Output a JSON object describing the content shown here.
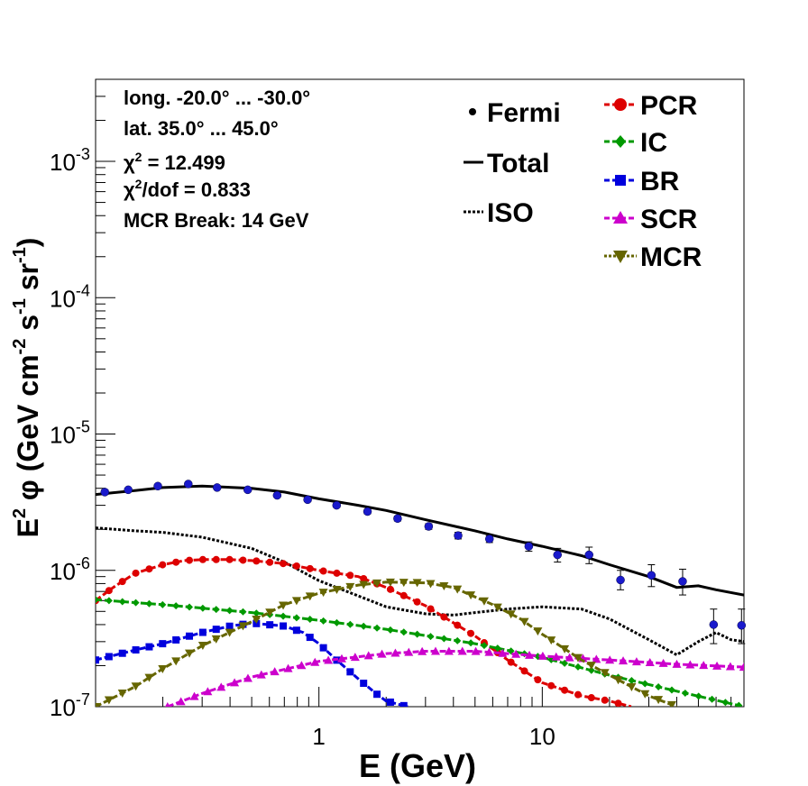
{
  "chart_data": {
    "type": "line",
    "xlabel": "E (GeV)",
    "ylabel": {
      "base": "E",
      "exp2": "2",
      "phi": " φ (GeV cm",
      "m2": "-2",
      "s": " s",
      "m1a": "-1",
      "sr": " sr",
      "m1b": "-1",
      "close": ")"
    },
    "xscale": "log",
    "yscale": "log",
    "xlim": [
      0.1,
      80
    ],
    "ylim": [
      1e-07,
      0.004
    ],
    "x_ticks": [
      {
        "v": 1,
        "label": "1"
      },
      {
        "v": 10,
        "label": "10"
      }
    ],
    "y_ticks": [
      {
        "v": 1e-07,
        "base": "10",
        "exp": "-7"
      },
      {
        "v": 1e-06,
        "base": "10",
        "exp": "-6"
      },
      {
        "v": 1e-05,
        "base": "10",
        "exp": "-5"
      },
      {
        "v": 0.0001,
        "base": "10",
        "exp": "-4"
      },
      {
        "v": 0.001,
        "base": "10",
        "exp": "-3"
      }
    ],
    "info": {
      "line1": "long. -20.0° ... -30.0°",
      "line2": "lat. 35.0° ... 45.0°",
      "chi2_sym": "χ",
      "chi2_exp": "2",
      "chi2_val": " = 12.499",
      "chidof_exp": "2",
      "chidof_val": "/dof = 0.833",
      "break": "MCR Break: 14 GeV"
    },
    "legend": {
      "fermi": "Fermi",
      "total": "Total",
      "iso": "ISO",
      "pcr": "PCR",
      "ic": "IC",
      "br": "BR",
      "scr": "SCR",
      "mcr": "MCR"
    },
    "colors": {
      "fermi": "#1a1acc",
      "total": "#000000",
      "iso": "#000000",
      "pcr": "#dd0000",
      "ic": "#009900",
      "br": "#0000dd",
      "scr": "#cc00cc",
      "mcr": "#666600"
    },
    "fermi": {
      "x": [
        0.11,
        0.14,
        0.19,
        0.26,
        0.35,
        0.48,
        0.65,
        0.89,
        1.2,
        1.65,
        2.25,
        3.1,
        4.2,
        5.8,
        8.7,
        11.7,
        16.2,
        22.4,
        30.8,
        42.5,
        58.5,
        78
      ],
      "y": [
        3.75e-06,
        3.9e-06,
        4.15e-06,
        4.3e-06,
        4.05e-06,
        3.9e-06,
        3.55e-06,
        3.3e-06,
        3e-06,
        2.7e-06,
        2.4e-06,
        2.1e-06,
        1.8e-06,
        1.7e-06,
        1.5e-06,
        1.3e-06,
        1.3e-06,
        8.5e-07,
        9.2e-07,
        8.3e-07,
        4e-07,
        3.95e-07
      ],
      "err_lo": [
        3.6e-06,
        3.8e-06,
        4.05e-06,
        4.2e-06,
        3.95e-06,
        3.8e-06,
        3.45e-06,
        3.2e-06,
        2.9e-06,
        2.6e-06,
        2.3e-06,
        2e-06,
        1.7e-06,
        1.6e-06,
        1.38e-06,
        1.15e-06,
        1.12e-06,
        7.2e-07,
        7.6e-07,
        6.6e-07,
        2.9e-07,
        2.9e-07
      ],
      "err_hi": [
        3.9e-06,
        4e-06,
        4.25e-06,
        4.4e-06,
        4.15e-06,
        4e-06,
        3.65e-06,
        3.4e-06,
        3.1e-06,
        2.8e-06,
        2.5e-06,
        2.2e-06,
        1.9e-06,
        1.8e-06,
        1.62e-06,
        1.45e-06,
        1.48e-06,
        1e-06,
        1.1e-06,
        1.02e-06,
        5.2e-07,
        5.2e-07
      ]
    },
    "series": [
      {
        "key": "total",
        "style": "solid",
        "marker": "none",
        "x": [
          0.1,
          0.15,
          0.2,
          0.3,
          0.5,
          0.7,
          1.0,
          1.5,
          2.0,
          3.0,
          5.0,
          7.0,
          10,
          15,
          20,
          30,
          40,
          50,
          60,
          80
        ],
        "y": [
          3.6e-06,
          3.85e-06,
          4.05e-06,
          4.15e-06,
          4e-06,
          3.75e-06,
          3.35e-06,
          3e-06,
          2.75e-06,
          2.35e-06,
          1.95e-06,
          1.7e-06,
          1.5e-06,
          1.28e-06,
          1.1e-06,
          9e-07,
          7.5e-07,
          7.7e-07,
          7.2e-07,
          6.6e-07
        ]
      },
      {
        "key": "iso",
        "style": "dotted",
        "marker": "none",
        "x": [
          0.1,
          0.15,
          0.2,
          0.3,
          0.5,
          0.7,
          1.0,
          1.5,
          2.0,
          3.0,
          4.0,
          5.0,
          7.0,
          10,
          15,
          20,
          30,
          40,
          50,
          60,
          70,
          80
        ],
        "y": [
          2.05e-06,
          1.95e-06,
          1.9e-06,
          1.75e-06,
          1.45e-06,
          1.15e-06,
          8.4e-07,
          6.5e-07,
          5.4e-07,
          4.8e-07,
          4.7e-07,
          4.9e-07,
          5.2e-07,
          5.4e-07,
          5.2e-07,
          4.4e-07,
          3.1e-07,
          2.4e-07,
          3e-07,
          3.5e-07,
          3.1e-07,
          3e-07
        ]
      },
      {
        "key": "pcr",
        "style": "dashed",
        "marker": "circle",
        "x": [
          0.1,
          0.12,
          0.15,
          0.2,
          0.25,
          0.3,
          0.4,
          0.5,
          0.7,
          1.0,
          1.5,
          2.0,
          3.0,
          5.0,
          7.0,
          10,
          15,
          20,
          25
        ],
        "y": [
          6e-07,
          7.5e-07,
          9.5e-07,
          1.1e-06,
          1.18e-06,
          1.2e-06,
          1.2e-06,
          1.18e-06,
          1.12e-06,
          1e-06,
          9e-07,
          7.5e-07,
          5.5e-07,
          3.3e-07,
          2.2e-07,
          1.5e-07,
          1.2e-07,
          1.1e-07,
          1e-07
        ]
      },
      {
        "key": "ic",
        "style": "dashed",
        "marker": "diamond",
        "x": [
          0.1,
          0.2,
          0.5,
          1.0,
          2.0,
          5.0,
          10,
          20,
          40,
          80
        ],
        "y": [
          6.1e-07,
          5.6e-07,
          4.9e-07,
          4.3e-07,
          3.7e-07,
          2.9e-07,
          2.3e-07,
          1.7e-07,
          1.3e-07,
          1e-07
        ]
      },
      {
        "key": "br",
        "style": "dashed",
        "marker": "square",
        "x": [
          0.1,
          0.15,
          0.2,
          0.3,
          0.4,
          0.5,
          0.7,
          0.85,
          1.0,
          1.2,
          1.5,
          1.8,
          2.0,
          2.5
        ],
        "y": [
          2.2e-07,
          2.6e-07,
          2.9e-07,
          3.5e-07,
          3.9e-07,
          4.1e-07,
          3.9e-07,
          3.5e-07,
          2.9e-07,
          2.2e-07,
          1.6e-07,
          1.25e-07,
          1.1e-07,
          1e-07
        ]
      },
      {
        "key": "scr",
        "style": "dashed",
        "marker": "triangle",
        "x": [
          0.21,
          0.3,
          0.5,
          1.0,
          2.0,
          3.0,
          5.0,
          10,
          20,
          40,
          80
        ],
        "y": [
          1e-07,
          1.25e-07,
          1.65e-07,
          2.15e-07,
          2.45e-07,
          2.55e-07,
          2.55e-07,
          2.35e-07,
          2.2e-07,
          2.05e-07,
          1.95e-07
        ]
      },
      {
        "key": "mcr",
        "style": "dashed",
        "marker": "invtriangle",
        "x": [
          0.1,
          0.15,
          0.2,
          0.3,
          0.5,
          0.7,
          1.0,
          1.5,
          2.0,
          3.0,
          4.0,
          6.0,
          8.0,
          10,
          15,
          20,
          30,
          40
        ],
        "y": [
          1e-07,
          1.4e-07,
          1.9e-07,
          2.8e-07,
          4.2e-07,
          5.6e-07,
          6.8e-07,
          7.8e-07,
          8.2e-07,
          8.1e-07,
          7.5e-07,
          5.6e-07,
          4.4e-07,
          3.4e-07,
          2.2e-07,
          1.7e-07,
          1.2e-07,
          1e-07
        ]
      }
    ]
  }
}
